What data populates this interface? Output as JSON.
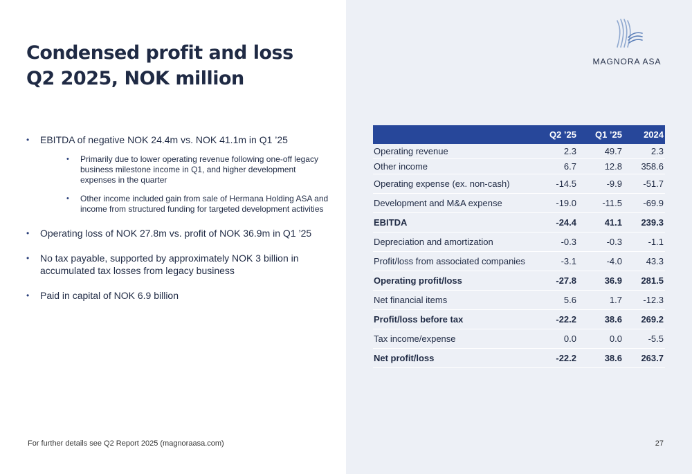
{
  "title": {
    "line1": "Condensed profit and loss",
    "line2": "Q2 2025, NOK million"
  },
  "logo": {
    "text": "MAGNORA ASA",
    "icon": "magnora-wave-icon"
  },
  "bullets": [
    {
      "text": "EBITDA of negative NOK 24.4m vs. NOK 41.1m in Q1 ’25",
      "sub": [
        "Primarily due to lower operating revenue following one-off legacy business milestone income in Q1, and higher development expenses in the quarter",
        "Other income included gain from sale of Hermana Holding ASA and income from structured funding for targeted development activities"
      ]
    },
    {
      "text": "Operating loss of NOK 27.8m vs. profit of NOK 36.9m in Q1 ’25"
    },
    {
      "text": "No tax payable, supported by approximately NOK 3 billion in accumulated tax losses from legacy business"
    },
    {
      "text": "Paid in capital of NOK 6.9 billion"
    }
  ],
  "table": {
    "headers": [
      "",
      "Q2 ’25",
      "Q1 ’25",
      "2024"
    ],
    "rows": [
      {
        "label": "Operating revenue",
        "q2": "2.3",
        "q1": "49.7",
        "y": "2.3"
      },
      {
        "label": "Other income",
        "q2": "6.7",
        "q1": "12.8",
        "y": "358.6"
      },
      {
        "label": "Operating expense (ex. non-cash)",
        "q2": "-14.5",
        "q1": "-9.9",
        "y": "-51.7"
      },
      {
        "label": "Development and M&A expense",
        "q2": "-19.0",
        "q1": "-11.5",
        "y": "-69.9"
      },
      {
        "label": "EBITDA",
        "q2": "-24.4",
        "q1": "41.1",
        "y": "239.3"
      },
      {
        "label": "Depreciation and amortization",
        "q2": "-0.3",
        "q1": "-0.3",
        "y": "-1.1"
      },
      {
        "label": "Profit/loss from associated companies",
        "q2": "-3.1",
        "q1": "-4.0",
        "y": "43.3"
      },
      {
        "label": "Operating profit/loss",
        "q2": "-27.8",
        "q1": "36.9",
        "y": "281.5"
      },
      {
        "label": "Net financial items",
        "q2": "5.6",
        "q1": "1.7",
        "y": "-12.3"
      },
      {
        "label": "Profit/loss before tax",
        "q2": "-22.2",
        "q1": "38.6",
        "y": "269.2"
      },
      {
        "label": "Tax income/expense",
        "q2": "0.0",
        "q1": "0.0",
        "y": "-5.5"
      },
      {
        "label": "Net profit/loss",
        "q2": "-22.2",
        "q1": "38.6",
        "y": "263.7"
      }
    ]
  },
  "footer": {
    "note": "For further details see Q2 Report 2025 (magnoraasa.com)",
    "page": "27"
  }
}
